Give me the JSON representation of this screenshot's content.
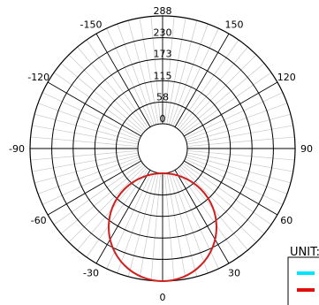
{
  "chart_data": {
    "type": "polar-line",
    "angle_ticks": [
      {
        "deg": 0,
        "label": "0"
      },
      {
        "deg": 30,
        "label": "30"
      },
      {
        "deg": 60,
        "label": "60"
      },
      {
        "deg": 90,
        "label": "90"
      },
      {
        "deg": 120,
        "label": "120"
      },
      {
        "deg": 150,
        "label": "150"
      },
      {
        "deg": -30,
        "label": "-30"
      },
      {
        "deg": -60,
        "label": "-60"
      },
      {
        "deg": -90,
        "label": "-90"
      },
      {
        "deg": -120,
        "label": "-120"
      },
      {
        "deg": -150,
        "label": "-150"
      }
    ],
    "radial_ticks": [
      "0",
      "58",
      "115",
      "173",
      "230",
      "288"
    ],
    "radial_range": [
      0,
      288
    ],
    "grid_step_deg": 5,
    "legend_title": "UNIT:",
    "legend_colors": [
      "#00e5ff",
      "#e01010"
    ],
    "series": [
      {
        "color": "#d02020",
        "curve": "polar-circle",
        "diameter": 288,
        "direction_deg": 0,
        "offset": 0
      }
    ]
  }
}
